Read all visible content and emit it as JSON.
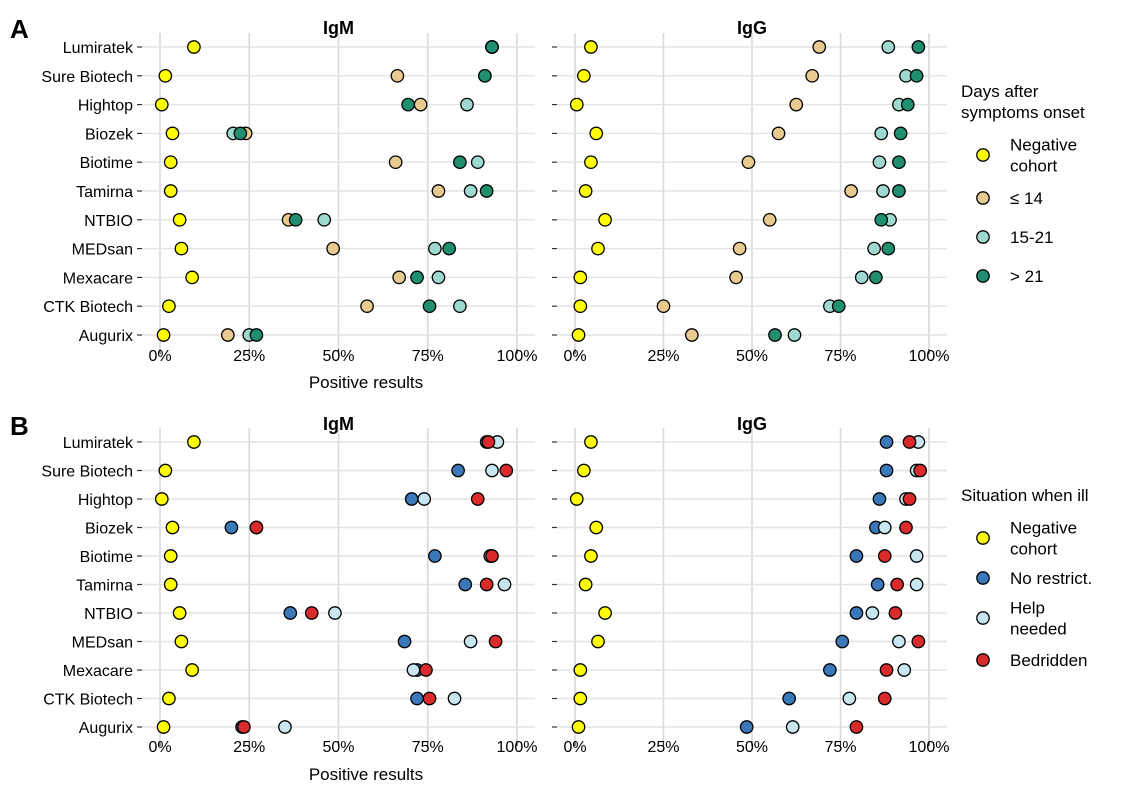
{
  "figure": {
    "panels": [
      {
        "letter": "A",
        "xlabel": "Positive results",
        "legend": {
          "title_lines": [
            "Days after",
            "symptoms onset"
          ],
          "items": [
            {
              "lines": [
                "Negative",
                "cohort"
              ],
              "color": "#ffff00"
            },
            {
              "lines": [
                "≤ 14"
              ],
              "color": "#e8c98f"
            },
            {
              "lines": [
                "15-21"
              ],
              "color": "#9ed9cf"
            },
            {
              "lines": [
                "> 21"
              ],
              "color": "#1f8f6f"
            }
          ]
        }
      },
      {
        "letter": "B",
        "xlabel": "Positive results",
        "legend": {
          "title_lines": [
            "Situation when ill"
          ],
          "items": [
            {
              "lines": [
                "Negative",
                "cohort"
              ],
              "color": "#ffff00"
            },
            {
              "lines": [
                "No restrict."
              ],
              "color": "#3a78b9"
            },
            {
              "lines": [
                "Help",
                "needed"
              ],
              "color": "#c7e6f0"
            },
            {
              "lines": [
                "Bedridden"
              ],
              "color": "#d92b2b"
            }
          ]
        }
      }
    ]
  },
  "chart_data": [
    {
      "type": "scatter",
      "panel": "A",
      "facet": "IgM",
      "xlabel": "Positive results",
      "x_ticks": [
        "0%",
        "25%",
        "50%",
        "75%",
        "100%"
      ],
      "xlim": [
        0,
        100
      ],
      "categories": [
        "Lumiratek",
        "Sure Biotech",
        "Hightop",
        "Biozek",
        "Biotime",
        "Tamirna",
        "NTBIO",
        "MEDsan",
        "Mexacare",
        "CTK Biotech",
        "Augurix"
      ],
      "series": [
        {
          "name": "Negative cohort",
          "color": "#ffff00",
          "values": [
            9.5,
            1.5,
            0.5,
            3.5,
            3,
            3,
            5.5,
            6,
            9,
            2.5,
            1
          ]
        },
        {
          "name": "≤ 14",
          "color": "#e8c98f",
          "values": [
            93,
            66.5,
            73,
            24,
            66,
            78,
            36,
            48.5,
            67,
            58,
            19
          ]
        },
        {
          "name": "15-21",
          "color": "#9ed9cf",
          "values": [
            93,
            91,
            86,
            20.5,
            89,
            87,
            46,
            77,
            78,
            84,
            25
          ]
        },
        {
          "name": "> 21",
          "color": "#1f8f6f",
          "values": [
            93,
            91,
            69.5,
            22.5,
            84,
            91.5,
            38,
            81,
            72,
            75.5,
            27
          ]
        }
      ]
    },
    {
      "type": "scatter",
      "panel": "A",
      "facet": "IgG",
      "xlabel": "Positive results",
      "x_ticks": [
        "0%",
        "25%",
        "50%",
        "75%",
        "100%"
      ],
      "xlim": [
        0,
        100
      ],
      "categories": [
        "Lumiratek",
        "Sure Biotech",
        "Hightop",
        "Biozek",
        "Biotime",
        "Tamirna",
        "NTBIO",
        "MEDsan",
        "Mexacare",
        "CTK Biotech",
        "Augurix"
      ],
      "series": [
        {
          "name": "Negative cohort",
          "color": "#ffff00",
          "values": [
            4.5,
            2.5,
            0.5,
            6,
            4.5,
            3,
            8.5,
            6.5,
            1.5,
            1.5,
            1
          ]
        },
        {
          "name": "≤ 14",
          "color": "#e8c98f",
          "values": [
            69,
            67,
            62.5,
            57.5,
            49,
            78,
            55,
            46.5,
            45.5,
            25,
            33
          ]
        },
        {
          "name": "15-21",
          "color": "#9ed9cf",
          "values": [
            88.5,
            93.5,
            91.5,
            86.5,
            86,
            87,
            89,
            84.5,
            81,
            72,
            62
          ]
        },
        {
          "name": "> 21",
          "color": "#1f8f6f",
          "values": [
            97,
            96.5,
            94,
            92,
            91.5,
            91.5,
            86.5,
            88.5,
            85,
            74.5,
            56.5
          ]
        }
      ]
    },
    {
      "type": "scatter",
      "panel": "B",
      "facet": "IgM",
      "xlabel": "Positive results",
      "x_ticks": [
        "0%",
        "25%",
        "50%",
        "75%",
        "100%"
      ],
      "xlim": [
        0,
        100
      ],
      "categories": [
        "Lumiratek",
        "Sure Biotech",
        "Hightop",
        "Biozek",
        "Biotime",
        "Tamirna",
        "NTBIO",
        "MEDsan",
        "Mexacare",
        "CTK Biotech",
        "Augurix"
      ],
      "series": [
        {
          "name": "Negative cohort",
          "color": "#ffff00",
          "values": [
            9.5,
            1.5,
            0.5,
            3.5,
            3,
            3,
            5.5,
            6,
            9,
            2.5,
            1
          ]
        },
        {
          "name": "No restrict.",
          "color": "#3a78b9",
          "values": [
            91.5,
            83.5,
            70.5,
            20,
            77,
            85.5,
            36.5,
            68.5,
            72,
            72,
            23
          ]
        },
        {
          "name": "Help needed",
          "color": "#c7e6f0",
          "values": [
            94.5,
            93,
            74,
            27,
            92.5,
            96.5,
            49,
            87,
            71,
            82.5,
            35
          ]
        },
        {
          "name": "Bedridden",
          "color": "#d92b2b",
          "values": [
            92,
            97,
            89,
            27,
            93,
            91.5,
            42.5,
            94,
            74.5,
            75.5,
            23.5
          ]
        }
      ]
    },
    {
      "type": "scatter",
      "panel": "B",
      "facet": "IgG",
      "xlabel": "Positive results",
      "x_ticks": [
        "0%",
        "25%",
        "50%",
        "75%",
        "100%"
      ],
      "xlim": [
        0,
        100
      ],
      "categories": [
        "Lumiratek",
        "Sure Biotech",
        "Hightop",
        "Biozek",
        "Biotime",
        "Tamirna",
        "NTBIO",
        "MEDsan",
        "Mexacare",
        "CTK Biotech",
        "Augurix"
      ],
      "series": [
        {
          "name": "Negative cohort",
          "color": "#ffff00",
          "values": [
            4.5,
            2.5,
            0.5,
            6,
            4.5,
            3,
            8.5,
            6.5,
            1.5,
            1.5,
            1
          ]
        },
        {
          "name": "No restrict.",
          "color": "#3a78b9",
          "values": [
            88,
            88,
            86,
            85,
            79.5,
            85.5,
            79.5,
            75.5,
            72,
            60.5,
            48.5
          ]
        },
        {
          "name": "Help needed",
          "color": "#c7e6f0",
          "values": [
            97,
            96.5,
            93.5,
            87.5,
            96.5,
            96.5,
            84,
            91.5,
            93,
            77.5,
            61.5
          ]
        },
        {
          "name": "Bedridden",
          "color": "#d92b2b",
          "values": [
            94.5,
            97.5,
            94.5,
            93.5,
            87.5,
            91,
            90.5,
            97,
            88,
            87.5,
            79.5
          ]
        }
      ]
    }
  ]
}
